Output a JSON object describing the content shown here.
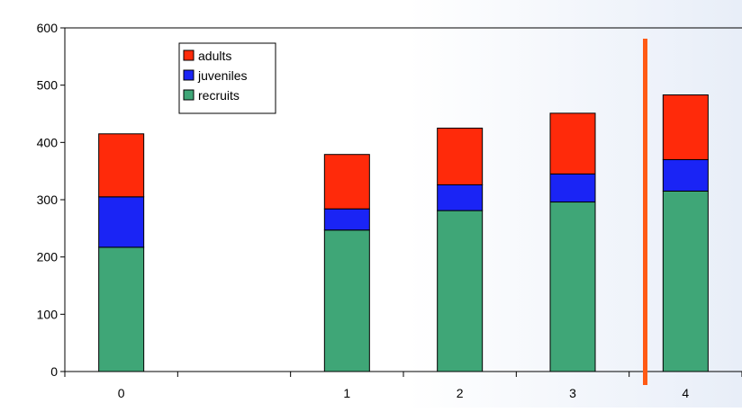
{
  "chart_data": {
    "type": "bar",
    "stacked": true,
    "categories": [
      "0",
      "",
      "1",
      "2",
      "3",
      "4"
    ],
    "series": [
      {
        "name": "recruits",
        "color": "#3fa677",
        "values": [
          217,
          null,
          247,
          281,
          296,
          315
        ]
      },
      {
        "name": "juveniles",
        "color": "#1a24f5",
        "values": [
          88,
          null,
          37,
          45,
          49,
          55
        ]
      },
      {
        "name": "adults",
        "color": "#ff2a0a",
        "values": [
          110,
          null,
          95,
          99,
          106,
          113
        ]
      }
    ],
    "ylim": [
      0,
      600
    ],
    "yticks": [
      0,
      100,
      200,
      300,
      400,
      500,
      600
    ],
    "title": "",
    "xlabel": "",
    "ylabel": "",
    "legend": {
      "placement": "top-left",
      "order": [
        "adults",
        "juveniles",
        "recruits"
      ]
    },
    "grid": false,
    "annotations": [
      {
        "type": "vertical-line",
        "between_categories": [
          "3",
          "4"
        ],
        "color": "#ff5a14"
      }
    ]
  }
}
